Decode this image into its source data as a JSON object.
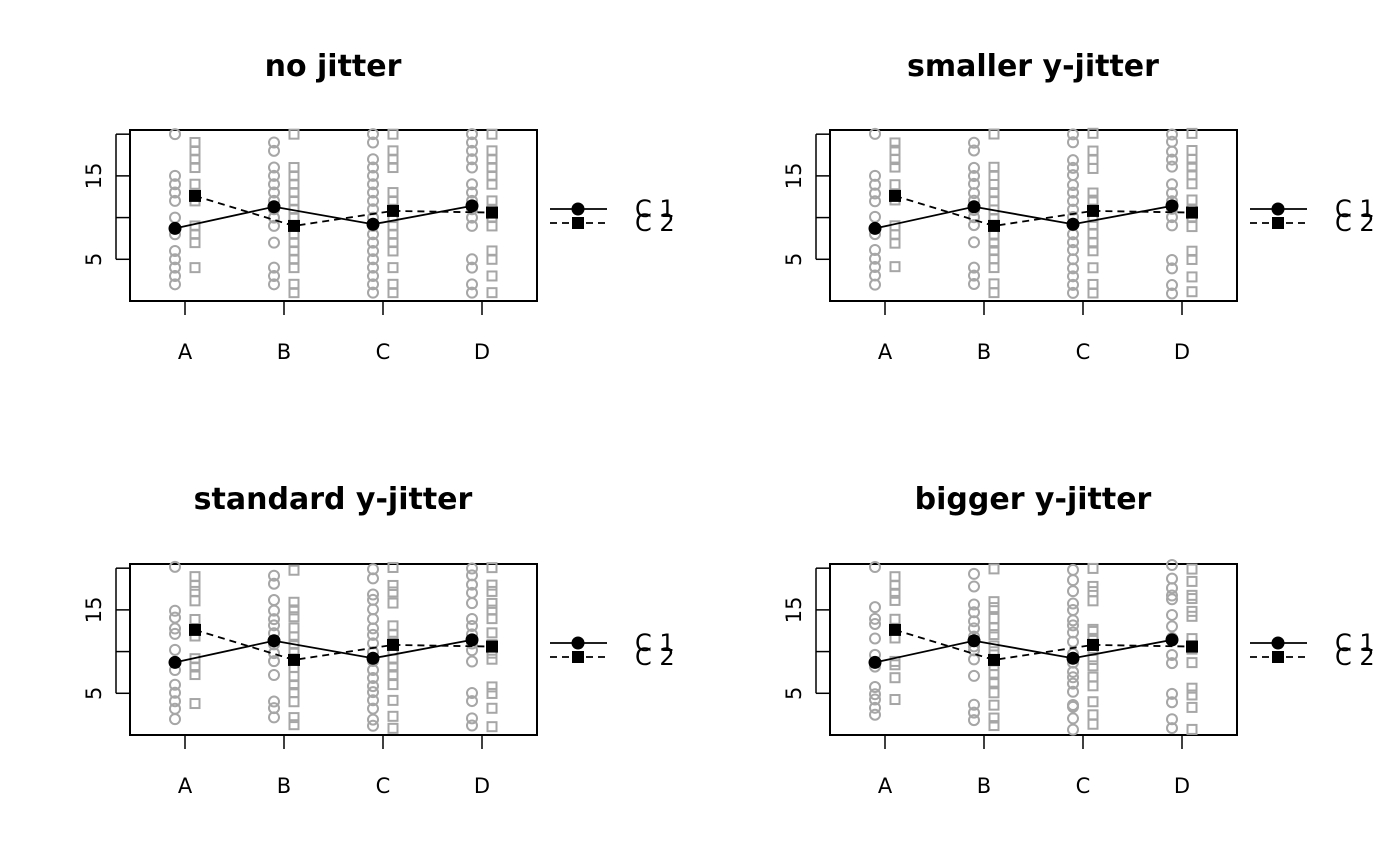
{
  "chart_data": [
    {
      "type": "scatter",
      "title": "no jitter",
      "xlabel": "",
      "ylabel": "",
      "categories": [
        "A",
        "B",
        "C",
        "D"
      ],
      "ylim": [
        0,
        20.5
      ],
      "yticks": [
        5,
        15
      ],
      "yticks_minor": [
        10,
        20
      ],
      "legend": {
        "position": "right",
        "entries": [
          "C 1",
          "C 2"
        ]
      },
      "jitter_y": 0,
      "series": [
        {
          "name": "C 1",
          "marker": "circle",
          "line": "solid",
          "means": [
            8.7,
            11.3,
            9.2,
            11.4
          ],
          "raw": [
            [
              2,
              3,
              4,
              5,
              6,
              8,
              10,
              12,
              13,
              14,
              15,
              20
            ],
            [
              2,
              3,
              4,
              7,
              9,
              10,
              11,
              12,
              13,
              14,
              15,
              16,
              18,
              19
            ],
            [
              1,
              2,
              3,
              4,
              5,
              6,
              7,
              8,
              9,
              10,
              11,
              12,
              13,
              14,
              15,
              16,
              17,
              19,
              20
            ],
            [
              1,
              2,
              4,
              5,
              9,
              10,
              11,
              12,
              13,
              14,
              16,
              17,
              18,
              19,
              20
            ]
          ]
        },
        {
          "name": "C 2",
          "marker": "square",
          "line": "dashed",
          "means": [
            12.6,
            9.0,
            10.8,
            10.6
          ],
          "raw": [
            [
              4,
              7,
              8,
              9,
              12,
              14,
              16,
              17,
              18,
              19
            ],
            [
              1,
              2,
              4,
              5,
              6,
              7,
              8,
              9,
              10,
              11,
              12,
              13,
              14,
              15,
              16,
              20
            ],
            [
              1,
              2,
              4,
              6,
              7,
              8,
              9,
              10,
              11,
              12,
              13,
              16,
              17,
              18,
              20
            ],
            [
              1,
              3,
              5,
              6,
              9,
              10,
              11,
              12,
              14,
              15,
              16,
              17,
              18,
              20
            ]
          ]
        }
      ]
    },
    {
      "type": "scatter",
      "title": "smaller y-jitter",
      "xlabel": "",
      "ylabel": "",
      "categories": [
        "A",
        "B",
        "C",
        "D"
      ],
      "ylim": [
        0,
        20.5
      ],
      "yticks": [
        5,
        15
      ],
      "yticks_minor": [
        10,
        20
      ],
      "legend": {
        "position": "right",
        "entries": [
          "C 1",
          "C 2"
        ]
      },
      "jitter_y": 0.12,
      "series": [
        {
          "name": "C 1",
          "marker": "circle",
          "line": "solid",
          "means": [
            8.7,
            11.3,
            9.2,
            11.4
          ],
          "raw": [
            [
              2,
              3,
              4,
              5,
              6,
              8,
              10,
              12,
              13,
              14,
              15,
              20
            ],
            [
              2,
              3,
              4,
              7,
              9,
              10,
              11,
              12,
              13,
              14,
              15,
              16,
              18,
              19
            ],
            [
              1,
              2,
              3,
              4,
              5,
              6,
              7,
              8,
              9,
              10,
              11,
              12,
              13,
              14,
              15,
              16,
              17,
              19,
              20
            ],
            [
              1,
              2,
              4,
              5,
              9,
              10,
              11,
              12,
              13,
              14,
              16,
              17,
              18,
              19,
              20
            ]
          ]
        },
        {
          "name": "C 2",
          "marker": "square",
          "line": "dashed",
          "means": [
            12.6,
            9.0,
            10.8,
            10.6
          ],
          "raw": [
            [
              4,
              7,
              8,
              9,
              12,
              14,
              16,
              17,
              18,
              19
            ],
            [
              1,
              2,
              4,
              5,
              6,
              7,
              8,
              9,
              10,
              11,
              12,
              13,
              14,
              15,
              16,
              20
            ],
            [
              1,
              2,
              4,
              6,
              7,
              8,
              9,
              10,
              11,
              12,
              13,
              16,
              17,
              18,
              20
            ],
            [
              1,
              3,
              5,
              6,
              9,
              10,
              11,
              12,
              14,
              15,
              16,
              17,
              18,
              20
            ]
          ]
        }
      ]
    },
    {
      "type": "scatter",
      "title": "standard y-jitter",
      "xlabel": "",
      "ylabel": "",
      "categories": [
        "A",
        "B",
        "C",
        "D"
      ],
      "ylim": [
        0,
        20.5
      ],
      "yticks": [
        5,
        15
      ],
      "yticks_minor": [
        10,
        20
      ],
      "legend": {
        "position": "right",
        "entries": [
          "C 1",
          "C 2"
        ]
      },
      "jitter_y": 0.25,
      "series": [
        {
          "name": "C 1",
          "marker": "circle",
          "line": "solid",
          "means": [
            8.7,
            11.3,
            9.2,
            11.4
          ],
          "raw": [
            [
              2,
              3,
              4,
              5,
              6,
              8,
              10,
              12,
              13,
              14,
              15,
              20
            ],
            [
              2,
              3,
              4,
              7,
              9,
              10,
              11,
              12,
              13,
              14,
              15,
              16,
              18,
              19
            ],
            [
              1,
              2,
              3,
              4,
              5,
              6,
              7,
              8,
              9,
              10,
              11,
              12,
              13,
              14,
              15,
              16,
              17,
              19,
              20
            ],
            [
              1,
              2,
              4,
              5,
              9,
              10,
              11,
              12,
              13,
              14,
              16,
              17,
              18,
              19,
              20
            ]
          ]
        },
        {
          "name": "C 2",
          "marker": "square",
          "line": "dashed",
          "means": [
            12.6,
            9.0,
            10.8,
            10.6
          ],
          "raw": [
            [
              4,
              7,
              8,
              9,
              12,
              14,
              16,
              17,
              18,
              19
            ],
            [
              1,
              2,
              4,
              5,
              6,
              7,
              8,
              9,
              10,
              11,
              12,
              13,
              14,
              15,
              16,
              20
            ],
            [
              1,
              2,
              4,
              6,
              7,
              8,
              9,
              10,
              11,
              12,
              13,
              16,
              17,
              18,
              20
            ],
            [
              1,
              3,
              5,
              6,
              9,
              10,
              11,
              12,
              14,
              15,
              16,
              17,
              18,
              20
            ]
          ]
        }
      ]
    },
    {
      "type": "scatter",
      "title": "bigger y-jitter",
      "xlabel": "",
      "ylabel": "",
      "categories": [
        "A",
        "B",
        "C",
        "D"
      ],
      "ylim": [
        0,
        20.5
      ],
      "yticks": [
        5,
        15
      ],
      "yticks_minor": [
        10,
        20
      ],
      "legend": {
        "position": "right",
        "entries": [
          "C 1",
          "C 2"
        ]
      },
      "jitter_y": 0.45,
      "series": [
        {
          "name": "C 1",
          "marker": "circle",
          "line": "solid",
          "means": [
            8.7,
            11.3,
            9.2,
            11.4
          ],
          "raw": [
            [
              2,
              3,
              4,
              5,
              6,
              8,
              10,
              12,
              13,
              14,
              15,
              20
            ],
            [
              2,
              3,
              4,
              7,
              9,
              10,
              11,
              12,
              13,
              14,
              15,
              16,
              18,
              19
            ],
            [
              1,
              2,
              3,
              4,
              5,
              6,
              7,
              8,
              9,
              10,
              11,
              12,
              13,
              14,
              15,
              16,
              17,
              19,
              20
            ],
            [
              1,
              2,
              4,
              5,
              9,
              10,
              11,
              12,
              13,
              14,
              16,
              17,
              18,
              19,
              20
            ]
          ]
        },
        {
          "name": "C 2",
          "marker": "square",
          "line": "dashed",
          "means": [
            12.6,
            9.0,
            10.8,
            10.6
          ],
          "raw": [
            [
              4,
              7,
              8,
              9,
              12,
              14,
              16,
              17,
              18,
              19
            ],
            [
              1,
              2,
              4,
              5,
              6,
              7,
              8,
              9,
              10,
              11,
              12,
              13,
              14,
              15,
              16,
              20
            ],
            [
              1,
              2,
              4,
              6,
              7,
              8,
              9,
              10,
              11,
              12,
              13,
              16,
              17,
              18,
              20
            ],
            [
              1,
              3,
              5,
              6,
              9,
              10,
              11,
              12,
              14,
              15,
              16,
              17,
              18,
              20
            ]
          ]
        }
      ]
    }
  ],
  "colors": {
    "raw_points": "#a6a6a6",
    "means": "#000000",
    "frame": "#000000"
  }
}
